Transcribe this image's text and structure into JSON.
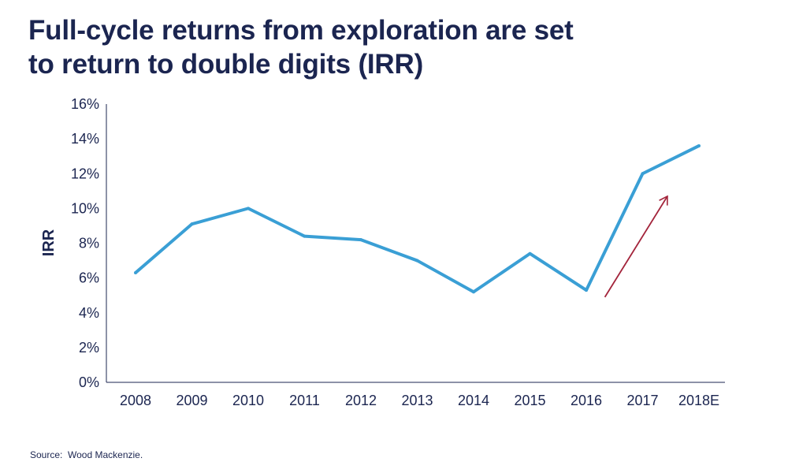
{
  "title_lines": [
    "Full-cycle returns from exploration are set",
    "to return to double digits (IRR)"
  ],
  "source": "Source:  Wood Mackenzie.",
  "colors": {
    "text": "#1b2550",
    "line": "#3a9fd5",
    "arrow": "#a3243b",
    "axis": "#1b2550"
  },
  "chart_data": {
    "type": "line",
    "title": "",
    "xlabel": "",
    "ylabel": "IRR",
    "categories": [
      "2008",
      "2009",
      "2010",
      "2011",
      "2012",
      "2013",
      "2014",
      "2015",
      "2016",
      "2017",
      "2018E"
    ],
    "series": [
      {
        "values": [
          6.3,
          9.1,
          10.0,
          8.4,
          8.2,
          7.0,
          5.2,
          7.4,
          5.3,
          12.0,
          13.6
        ]
      }
    ],
    "ylim": [
      0,
      16
    ],
    "yticks": [
      0,
      2,
      4,
      6,
      8,
      10,
      12,
      14,
      16
    ],
    "ytick_format": "%",
    "grid": false,
    "legend": "none",
    "annotations": [
      {
        "type": "arrow",
        "from": {
          "x": "2016",
          "y": 4.9
        },
        "to": {
          "x": "2017",
          "y": 10.7
        }
      }
    ]
  }
}
